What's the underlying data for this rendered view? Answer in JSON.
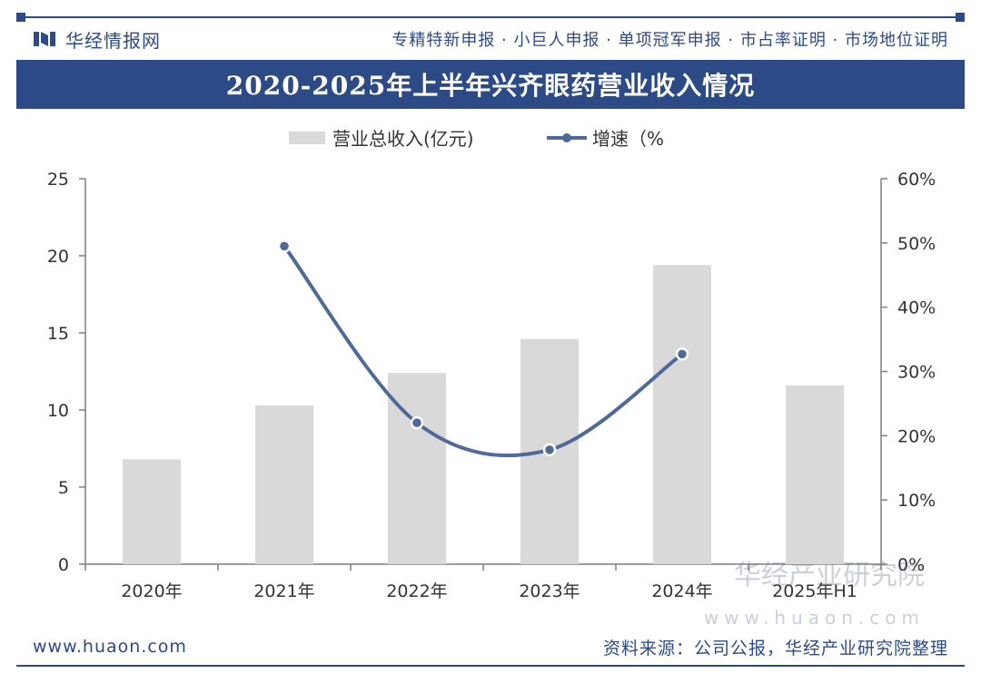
{
  "header": {
    "logo_text": "华经情报网",
    "tagline": "专精特新申报 · 小巨人申报 · 单项冠军申报 · 市占率证明 · 市场地位证明"
  },
  "chart_data": {
    "type": "bar",
    "title": "2020-2025年上半年兴齐眼药营业收入情况",
    "categories": [
      "2020年",
      "2021年",
      "2022年",
      "2023年",
      "2024年",
      "2025年H1"
    ],
    "series": [
      {
        "name": "营业总收入(亿元)",
        "type": "bar",
        "axis": "left",
        "values": [
          6.8,
          10.3,
          12.4,
          14.6,
          19.4,
          11.6
        ]
      },
      {
        "name": "增速（%",
        "type": "line",
        "axis": "right",
        "values": [
          null,
          49.5,
          22.0,
          17.8,
          32.7,
          null
        ]
      }
    ],
    "ylim_left": [
      0,
      25
    ],
    "yticks_left": [
      "0",
      "5",
      "10",
      "15",
      "20",
      "25"
    ],
    "ylim_right": [
      0,
      60
    ],
    "yticks_right": [
      "0%",
      "10%",
      "20%",
      "30%",
      "40%",
      "50%",
      "60%"
    ],
    "legend_position": "top-center",
    "colors": {
      "bar": "#d9d9d9",
      "line": "#4f6a98",
      "axis": "#7f7f7f"
    }
  },
  "watermark": {
    "main": "华经产业研究院",
    "url": "www.huaon.com"
  },
  "footer": {
    "site": "www.huaon.com",
    "source": "资料来源：公司公报，华经产业研究院整理"
  }
}
